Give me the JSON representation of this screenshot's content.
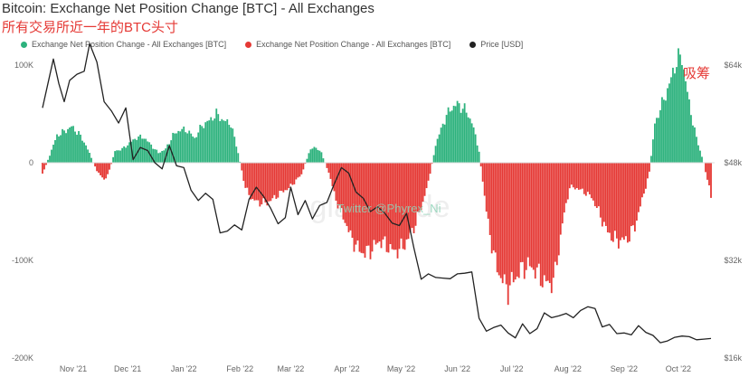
{
  "header": {
    "title": "Bitcoin: Exchange Net Position Change [BTC] - All Exchanges",
    "subtitle": "所有交易所近一年的BTC头寸"
  },
  "annotation": "吸筹",
  "watermark": "glassnode",
  "credit": "Twitter @Phyrex_Ni",
  "colors": {
    "inflow": "#2db27d",
    "outflow": "#e53935",
    "price": "#222222"
  },
  "legend": [
    {
      "label": "Exchange Net Position Change - All Exchanges [BTC]",
      "color": "#2db27d"
    },
    {
      "label": "Exchange Net Position Change - All Exchanges [BTC]",
      "color": "#e53935"
    },
    {
      "label": "Price [USD]",
      "color": "#222222"
    }
  ],
  "chart_data": {
    "type": "bar",
    "title": "Bitcoin: Exchange Net Position Change [BTC] - All Exchanges",
    "x_axis": {
      "type": "date",
      "start": "2021-10-15",
      "end": "2022-10-21",
      "tick_labels": [
        "Nov '21",
        "Dec '21",
        "Jan '22",
        "Feb '22",
        "Mar '22",
        "Apr '22",
        "May '22",
        "Jun '22",
        "Jul '22",
        "Aug '22",
        "Sep '22",
        "Oct '22"
      ]
    },
    "y_left": {
      "min": -200000,
      "max": 100000,
      "tick_values": [
        100000,
        0,
        -100000,
        -200000
      ],
      "tick_labels": [
        "100K",
        "0",
        "-100K",
        "-200K"
      ]
    },
    "y_right": {
      "min": 16000,
      "max": 64000,
      "tick_values": [
        64000,
        48000,
        32000,
        16000
      ],
      "tick_labels": [
        "$64k",
        "$48k",
        "$32k",
        "$16k"
      ]
    },
    "grid": false,
    "legend_position": "top-left",
    "series": [
      {
        "name": "Exchange Net Position Change - All Exchanges [BTC]",
        "axis": "left",
        "color_positive": "#2db27d",
        "color_negative": "#e53935",
        "points": [
          [
            "2021-10-15",
            -12000
          ],
          [
            "2021-10-19",
            8000
          ],
          [
            "2021-10-23",
            28000
          ],
          [
            "2021-10-27",
            32000
          ],
          [
            "2021-10-31",
            37000
          ],
          [
            "2021-11-04",
            30000
          ],
          [
            "2021-11-08",
            18000
          ],
          [
            "2021-11-11",
            5000
          ],
          [
            "2021-11-14",
            -8000
          ],
          [
            "2021-11-18",
            -18000
          ],
          [
            "2021-11-21",
            -8000
          ],
          [
            "2021-11-24",
            12000
          ],
          [
            "2021-11-28",
            14000
          ],
          [
            "2021-12-02",
            20000
          ],
          [
            "2021-12-06",
            26000
          ],
          [
            "2021-12-10",
            26000
          ],
          [
            "2021-12-14",
            18000
          ],
          [
            "2021-12-18",
            10000
          ],
          [
            "2021-12-22",
            14000
          ],
          [
            "2021-12-26",
            28000
          ],
          [
            "2021-12-30",
            34000
          ],
          [
            "2022-01-03",
            33000
          ],
          [
            "2022-01-07",
            25000
          ],
          [
            "2022-01-11",
            38000
          ],
          [
            "2022-01-15",
            43000
          ],
          [
            "2022-01-19",
            50000
          ],
          [
            "2022-01-23",
            43000
          ],
          [
            "2022-01-27",
            40000
          ],
          [
            "2022-01-31",
            10000
          ],
          [
            "2022-02-04",
            -26000
          ],
          [
            "2022-02-08",
            -38000
          ],
          [
            "2022-02-12",
            -41000
          ],
          [
            "2022-02-16",
            -41000
          ],
          [
            "2022-02-20",
            -36000
          ],
          [
            "2022-02-24",
            -30000
          ],
          [
            "2022-02-28",
            -26000
          ],
          [
            "2022-03-03",
            -20000
          ],
          [
            "2022-03-07",
            -12000
          ],
          [
            "2022-03-11",
            10000
          ],
          [
            "2022-03-14",
            17000
          ],
          [
            "2022-03-18",
            10000
          ],
          [
            "2022-03-22",
            -10000
          ],
          [
            "2022-03-26",
            -38000
          ],
          [
            "2022-03-30",
            -55000
          ],
          [
            "2022-04-03",
            -75000
          ],
          [
            "2022-04-07",
            -88000
          ],
          [
            "2022-04-11",
            -93000
          ],
          [
            "2022-04-15",
            -88000
          ],
          [
            "2022-04-19",
            -80000
          ],
          [
            "2022-04-23",
            -85000
          ],
          [
            "2022-04-27",
            -91000
          ],
          [
            "2022-05-01",
            -88000
          ],
          [
            "2022-05-05",
            -78000
          ],
          [
            "2022-05-09",
            -62000
          ],
          [
            "2022-05-13",
            -40000
          ],
          [
            "2022-05-16",
            -20000
          ],
          [
            "2022-05-20",
            18000
          ],
          [
            "2022-05-24",
            40000
          ],
          [
            "2022-05-28",
            55000
          ],
          [
            "2022-06-01",
            60000
          ],
          [
            "2022-06-05",
            55000
          ],
          [
            "2022-06-09",
            42000
          ],
          [
            "2022-06-13",
            12000
          ],
          [
            "2022-06-17",
            -50000
          ],
          [
            "2022-06-21",
            -95000
          ],
          [
            "2022-06-25",
            -118000
          ],
          [
            "2022-06-29",
            -130000
          ],
          [
            "2022-07-02",
            -120000
          ],
          [
            "2022-07-06",
            -110000
          ],
          [
            "2022-07-10",
            -105000
          ],
          [
            "2022-07-14",
            -110000
          ],
          [
            "2022-07-18",
            -120000
          ],
          [
            "2022-07-22",
            -125000
          ],
          [
            "2022-07-25",
            -115000
          ],
          [
            "2022-07-29",
            -62000
          ],
          [
            "2022-08-02",
            -25000
          ],
          [
            "2022-08-06",
            -26000
          ],
          [
            "2022-08-10",
            -30000
          ],
          [
            "2022-08-14",
            -35000
          ],
          [
            "2022-08-18",
            -50000
          ],
          [
            "2022-08-22",
            -68000
          ],
          [
            "2022-08-26",
            -78000
          ],
          [
            "2022-08-30",
            -80000
          ],
          [
            "2022-09-03",
            -78000
          ],
          [
            "2022-09-07",
            -65000
          ],
          [
            "2022-09-11",
            -38000
          ],
          [
            "2022-09-15",
            -10000
          ],
          [
            "2022-09-18",
            40000
          ],
          [
            "2022-09-22",
            60000
          ],
          [
            "2022-09-26",
            80000
          ],
          [
            "2022-09-30",
            105000
          ],
          [
            "2022-10-03",
            108000
          ],
          [
            "2022-10-07",
            60000
          ],
          [
            "2022-10-11",
            25000
          ],
          [
            "2022-10-15",
            0
          ],
          [
            "2022-10-19",
            -35000
          ]
        ]
      },
      {
        "name": "Price [USD]",
        "axis": "right",
        "color": "#222222",
        "points": [
          [
            "2021-10-15",
            57000
          ],
          [
            "2021-10-18",
            61000
          ],
          [
            "2021-10-21",
            65000
          ],
          [
            "2021-10-24",
            61000
          ],
          [
            "2021-10-27",
            58000
          ],
          [
            "2021-10-30",
            61500
          ],
          [
            "2021-11-03",
            62500
          ],
          [
            "2021-11-07",
            63000
          ],
          [
            "2021-11-10",
            67500
          ],
          [
            "2021-11-14",
            64500
          ],
          [
            "2021-11-18",
            58000
          ],
          [
            "2021-11-22",
            56500
          ],
          [
            "2021-11-26",
            54500
          ],
          [
            "2021-11-30",
            57000
          ],
          [
            "2021-12-04",
            48500
          ],
          [
            "2021-12-08",
            50500
          ],
          [
            "2021-12-12",
            50000
          ],
          [
            "2021-12-16",
            48000
          ],
          [
            "2021-12-20",
            47000
          ],
          [
            "2021-12-24",
            50800
          ],
          [
            "2021-12-28",
            47500
          ],
          [
            "2022-01-01",
            47200
          ],
          [
            "2022-01-05",
            43500
          ],
          [
            "2022-01-09",
            41800
          ],
          [
            "2022-01-13",
            43000
          ],
          [
            "2022-01-17",
            42000
          ],
          [
            "2022-01-21",
            36500
          ],
          [
            "2022-01-25",
            36800
          ],
          [
            "2022-01-29",
            37800
          ],
          [
            "2022-02-02",
            37000
          ],
          [
            "2022-02-06",
            42000
          ],
          [
            "2022-02-10",
            44000
          ],
          [
            "2022-02-14",
            42500
          ],
          [
            "2022-02-18",
            40500
          ],
          [
            "2022-02-22",
            38000
          ],
          [
            "2022-02-26",
            39000
          ],
          [
            "2022-03-01",
            44000
          ],
          [
            "2022-03-05",
            39500
          ],
          [
            "2022-03-09",
            41800
          ],
          [
            "2022-03-13",
            38800
          ],
          [
            "2022-03-17",
            41000
          ],
          [
            "2022-03-21",
            41500
          ],
          [
            "2022-03-25",
            44500
          ],
          [
            "2022-03-29",
            47200
          ],
          [
            "2022-04-02",
            46300
          ],
          [
            "2022-04-06",
            43200
          ],
          [
            "2022-04-10",
            42200
          ],
          [
            "2022-04-14",
            40000
          ],
          [
            "2022-04-18",
            40800
          ],
          [
            "2022-04-22",
            39700
          ],
          [
            "2022-04-26",
            38100
          ],
          [
            "2022-04-30",
            37700
          ],
          [
            "2022-05-04",
            39700
          ],
          [
            "2022-05-08",
            34000
          ],
          [
            "2022-05-12",
            28900
          ],
          [
            "2022-05-16",
            29800
          ],
          [
            "2022-05-20",
            29200
          ],
          [
            "2022-05-24",
            29100
          ],
          [
            "2022-05-28",
            29000
          ],
          [
            "2022-06-01",
            29800
          ],
          [
            "2022-06-05",
            29900
          ],
          [
            "2022-06-09",
            30100
          ],
          [
            "2022-06-13",
            22500
          ],
          [
            "2022-06-17",
            20400
          ],
          [
            "2022-06-21",
            21000
          ],
          [
            "2022-06-25",
            21400
          ],
          [
            "2022-06-29",
            20100
          ],
          [
            "2022-07-03",
            19300
          ],
          [
            "2022-07-07",
            21600
          ],
          [
            "2022-07-11",
            20000
          ],
          [
            "2022-07-15",
            20800
          ],
          [
            "2022-07-19",
            23400
          ],
          [
            "2022-07-23",
            22600
          ],
          [
            "2022-07-27",
            22900
          ],
          [
            "2022-07-31",
            23300
          ],
          [
            "2022-08-04",
            22600
          ],
          [
            "2022-08-08",
            23800
          ],
          [
            "2022-08-12",
            24400
          ],
          [
            "2022-08-16",
            24100
          ],
          [
            "2022-08-20",
            21100
          ],
          [
            "2022-08-24",
            21500
          ],
          [
            "2022-08-28",
            20000
          ],
          [
            "2022-09-01",
            20100
          ],
          [
            "2022-09-05",
            19800
          ],
          [
            "2022-09-09",
            21300
          ],
          [
            "2022-09-13",
            20200
          ],
          [
            "2022-09-17",
            19700
          ],
          [
            "2022-09-21",
            18500
          ],
          [
            "2022-09-25",
            18800
          ],
          [
            "2022-09-29",
            19400
          ],
          [
            "2022-10-03",
            19600
          ],
          [
            "2022-10-07",
            19500
          ],
          [
            "2022-10-11",
            19000
          ],
          [
            "2022-10-15",
            19100
          ],
          [
            "2022-10-19",
            19200
          ]
        ]
      }
    ]
  }
}
